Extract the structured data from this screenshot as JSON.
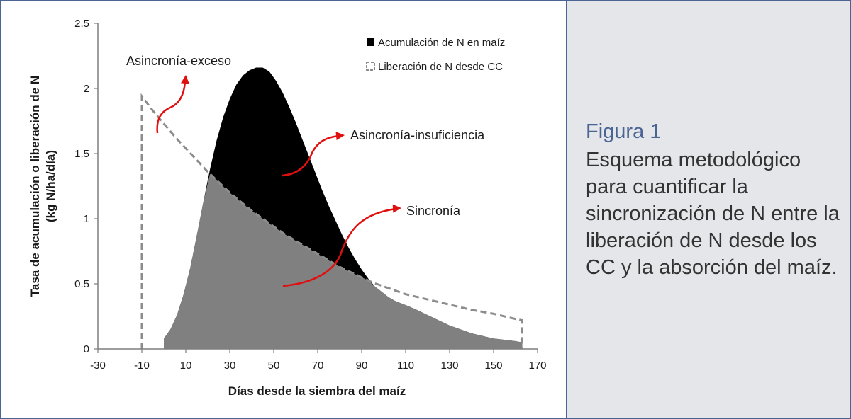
{
  "chart_data": {
    "type": "area",
    "xlabel": "Días desde la siembra del maíz",
    "ylabel_lines": [
      "Tasa de acumulación o liberación de N",
      "(kg N/ha/día)"
    ],
    "xlim": [
      -30,
      170
    ],
    "ylim": [
      0,
      2.5
    ],
    "x_ticks": [
      "-30",
      "-10",
      "10",
      "30",
      "50",
      "70",
      "90",
      "110",
      "130",
      "150",
      "170"
    ],
    "y_ticks": [
      "0",
      "0.5",
      "1",
      "1.5",
      "2",
      "2.5"
    ],
    "grid": false,
    "legend_position": "top-right",
    "series": [
      {
        "name": "Acumulación de N en maíz",
        "style": "filled-black",
        "x": [
          0,
          3,
          6,
          9,
          12,
          15,
          18,
          21,
          24,
          27,
          30,
          33,
          36,
          39,
          42,
          45,
          48,
          51,
          54,
          57,
          60,
          63,
          66,
          69,
          72,
          75,
          78,
          81,
          84,
          87,
          90,
          93,
          96,
          99,
          102,
          105,
          108,
          111,
          115,
          120,
          125,
          130,
          135,
          140,
          145,
          150,
          155,
          160,
          163
        ],
        "y": [
          0.08,
          0.15,
          0.26,
          0.42,
          0.62,
          0.87,
          1.13,
          1.38,
          1.6,
          1.78,
          1.92,
          2.03,
          2.1,
          2.14,
          2.16,
          2.16,
          2.13,
          2.06,
          1.97,
          1.86,
          1.74,
          1.61,
          1.48,
          1.35,
          1.22,
          1.1,
          0.99,
          0.88,
          0.78,
          0.69,
          0.61,
          0.54,
          0.48,
          0.44,
          0.4,
          0.37,
          0.35,
          0.33,
          0.3,
          0.26,
          0.22,
          0.18,
          0.15,
          0.12,
          0.1,
          0.08,
          0.07,
          0.06,
          0.05
        ]
      },
      {
        "name": "Liberación de N desde CC",
        "style": "dashed-gray",
        "x": [
          -10,
          -10,
          -5,
          0,
          5,
          10,
          15,
          20,
          25,
          30,
          35,
          40,
          45,
          50,
          55,
          60,
          65,
          70,
          75,
          80,
          85,
          90,
          95,
          100,
          105,
          110,
          120,
          130,
          140,
          150,
          160,
          163,
          163
        ],
        "y": [
          0,
          1.94,
          1.83,
          1.73,
          1.63,
          1.54,
          1.45,
          1.36,
          1.28,
          1.2,
          1.13,
          1.06,
          1.0,
          0.94,
          0.88,
          0.83,
          0.78,
          0.73,
          0.68,
          0.63,
          0.59,
          0.55,
          0.51,
          0.48,
          0.45,
          0.42,
          0.38,
          0.34,
          0.3,
          0.27,
          0.23,
          0.22,
          0
        ]
      }
    ],
    "annotations": [
      {
        "text": "Asincronía-exceso"
      },
      {
        "text": "Asincronía-insuficiencia"
      },
      {
        "text": "Sincronía"
      }
    ]
  },
  "caption": {
    "title": "Figura 1",
    "text": "Esquema metodológico para cuantificar la sincronización de N entre la liberación de N desde los CC y la absorción del maíz."
  },
  "colors": {
    "accumulation_fill": "#000000",
    "synchrony_fill": "#808080",
    "release_line": "#8c8c8c",
    "arrow": "#e01010",
    "frame": "#4a6494",
    "caption_bg": "#e5e6ea",
    "caption_title": "#4a6494"
  }
}
